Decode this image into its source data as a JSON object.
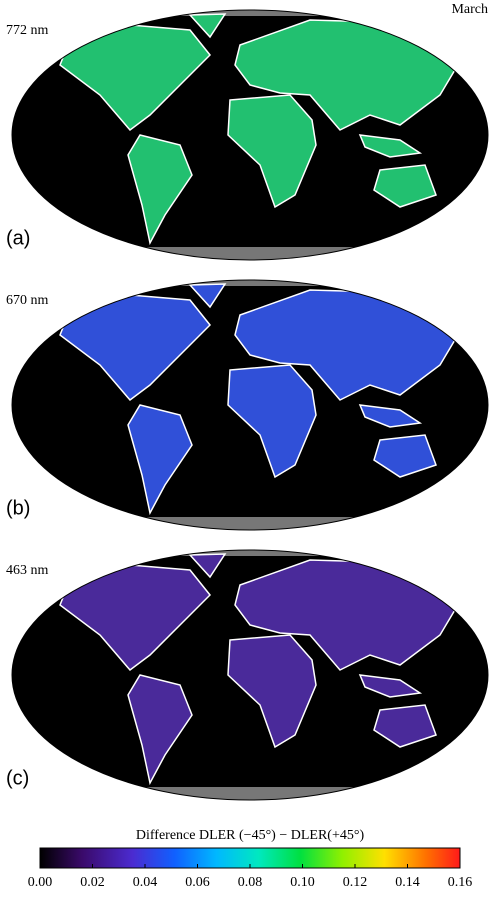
{
  "month": "March",
  "panels": [
    {
      "wavelength": "772 nm",
      "label": "(a)"
    },
    {
      "wavelength": "670 nm",
      "label": "(b)"
    },
    {
      "wavelength": "463 nm",
      "label": "(c)"
    }
  ],
  "colorbar": {
    "title": "Difference DLER (−45°) − DLER(+45°)",
    "lim": [
      0,
      0.16
    ],
    "ticks": [
      {
        "value": 0,
        "label": "0.00"
      },
      {
        "value": 0.02,
        "label": "0.02"
      },
      {
        "value": 0.04,
        "label": "0.04"
      },
      {
        "value": 0.06,
        "label": "0.06"
      },
      {
        "value": 0.08,
        "label": "0.08"
      },
      {
        "value": 0.1,
        "label": "0.10"
      },
      {
        "value": 0.12,
        "label": "0.12"
      },
      {
        "value": 0.14,
        "label": "0.14"
      },
      {
        "value": 0.16,
        "label": "0.16"
      }
    ]
  }
}
